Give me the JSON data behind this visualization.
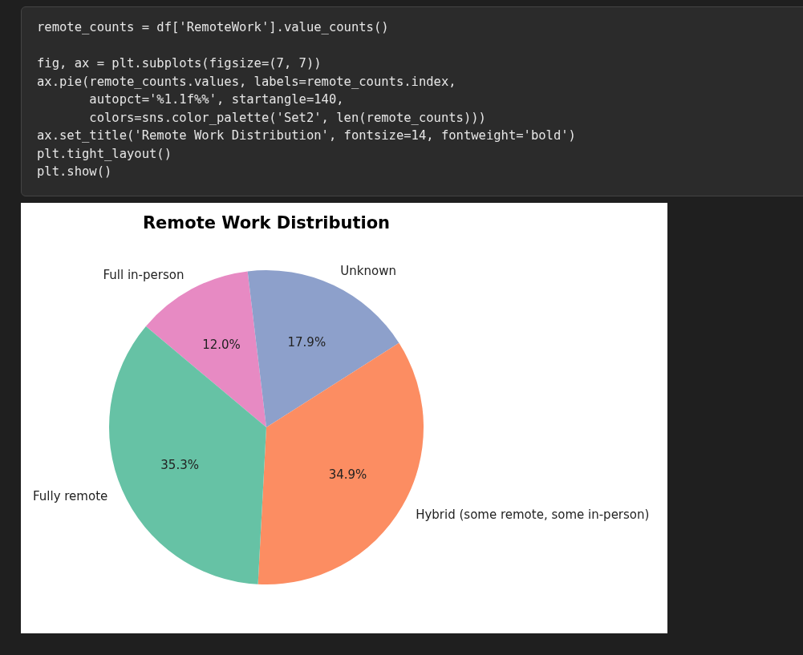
{
  "chart_data": {
    "type": "pie",
    "title": "Remote Work Distribution",
    "categories": [
      "Fully remote",
      "Hybrid (some remote, some in-person)",
      "Unknown",
      "Full in-person"
    ],
    "values": [
      35.3,
      34.9,
      17.9,
      12.0
    ],
    "value_labels": [
      "35.3%",
      "34.9%",
      "17.9%",
      "12.0%"
    ],
    "colors": [
      "#66c2a5",
      "#fc8d62",
      "#8da0cb",
      "#e78ac3"
    ],
    "legend": false,
    "annotations": [
      "remote_counts = df['RemoteWork'].value_counts()",
      "fig, ax = plt.subplots(figsize=(7, 7))",
      "ax.pie(remote_counts.values, labels=remote_counts.index,",
      "       autopct='%1.1f%%', startangle=140,",
      "       colors=sns.color_palette('Set2', len(remote_counts)))",
      "ax.set_title('Remote Work Distribution', fontsize=14, fontweight='bold')",
      "plt.tight_layout()",
      "plt.show()"
    ]
  }
}
